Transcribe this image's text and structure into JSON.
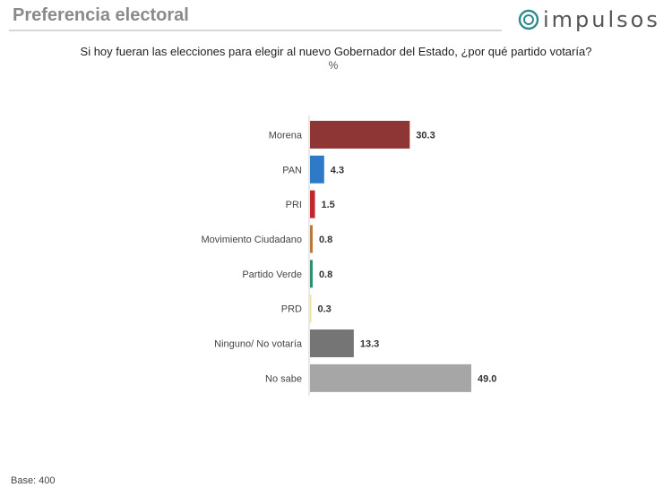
{
  "header": {
    "title": "Preferencia electoral",
    "logo_text": "impulsos",
    "logo_icon": "impulsos-logo-icon"
  },
  "colors": {
    "header_rule": "#d7d7d7",
    "logo_accent": "#2f8a8e"
  },
  "chart_data": {
    "type": "bar",
    "orientation": "horizontal",
    "title": "Si hoy fueran las elecciones para elegir al nuevo Gobernador del Estado, ¿por qué partido votaría?",
    "unit": "%",
    "categories": [
      "Morena",
      "PAN",
      "PRI",
      "Movimiento Ciudadano",
      "Partido Verde",
      "PRD",
      "Ninguno/ No votaría",
      "No sabe"
    ],
    "values": [
      30.3,
      4.3,
      1.5,
      0.8,
      0.8,
      0.3,
      13.3,
      49.0
    ],
    "value_labels": [
      "30.3",
      "4.3",
      "1.5",
      "0.8",
      "0.8",
      "0.3",
      "13.3",
      "49.0"
    ],
    "colors": [
      "#8e3535",
      "#2f79c9",
      "#c1272d",
      "#b87838",
      "#2a8f6a",
      "#f0e0a0",
      "#757575",
      "#a6a6a6"
    ],
    "xlim": [
      0,
      49.0
    ],
    "grid": false,
    "legend": "none"
  },
  "footer": {
    "base": "Base: 400"
  }
}
